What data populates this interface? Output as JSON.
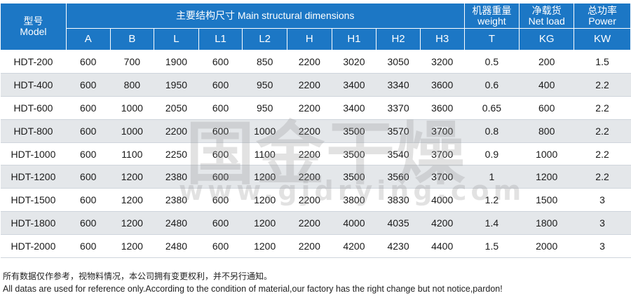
{
  "header": {
    "model_cn": "型号",
    "model_en": "Model",
    "dims_title": "主要结构尺寸 Main structural dimensions",
    "weight_cn": "机器重量",
    "weight_en": "weight",
    "netload_cn": "净载货",
    "netload_en": "Net load",
    "power_cn": "总功率",
    "power_en": "Power",
    "dim_cols": [
      "A",
      "B",
      "L",
      "L1",
      "L2",
      "H",
      "H1",
      "H2",
      "H3"
    ],
    "weight_unit": "T",
    "netload_unit": "KG",
    "power_unit": "KW"
  },
  "rows": [
    [
      "HDT-200",
      "600",
      "700",
      "1900",
      "600",
      "850",
      "2200",
      "3020",
      "3050",
      "3200",
      "0.5",
      "200",
      "1.5"
    ],
    [
      "HDT-400",
      "600",
      "800",
      "1950",
      "600",
      "950",
      "2200",
      "3400",
      "3340",
      "3600",
      "0.6",
      "400",
      "2.2"
    ],
    [
      "HDT-600",
      "600",
      "1000",
      "2050",
      "600",
      "950",
      "2200",
      "3400",
      "3370",
      "3600",
      "0.65",
      "600",
      "2.2"
    ],
    [
      "HDT-800",
      "600",
      "1000",
      "2200",
      "600",
      "1000",
      "2200",
      "3500",
      "3570",
      "3700",
      "0.8",
      "800",
      "2.2"
    ],
    [
      "HDT-1000",
      "600",
      "1100",
      "2250",
      "600",
      "1100",
      "2200",
      "3500",
      "3540",
      "3700",
      "0.9",
      "1000",
      "2.2"
    ],
    [
      "HDT-1200",
      "600",
      "1200",
      "2380",
      "600",
      "1200",
      "2200",
      "3500",
      "3560",
      "3700",
      "1",
      "1200",
      "2.2"
    ],
    [
      "HDT-1500",
      "600",
      "1200",
      "2380",
      "600",
      "1200",
      "2200",
      "3800",
      "3830",
      "4000",
      "1.2",
      "1500",
      "3"
    ],
    [
      "HDT-1800",
      "600",
      "1200",
      "2480",
      "600",
      "1200",
      "2200",
      "4000",
      "4035",
      "4200",
      "1.4",
      "1800",
      "3"
    ],
    [
      "HDT-2000",
      "600",
      "1200",
      "2480",
      "600",
      "1200",
      "2200",
      "4200",
      "4230",
      "4400",
      "1.5",
      "2000",
      "3"
    ]
  ],
  "watermark": {
    "text_cn": "国金干燥",
    "url": "www.gjdrying.com"
  },
  "notes": {
    "cn": "所有数据仅作参考，视物料情况，本公司拥有变更权利，并不另行通知。",
    "en": "All datas are used for reference only.According to the condition of material,our factory has the right change but not notice,pardon!"
  },
  "colors": {
    "header_bg": "#1c77c5",
    "row_alt_bg": "#e4e7ea"
  }
}
